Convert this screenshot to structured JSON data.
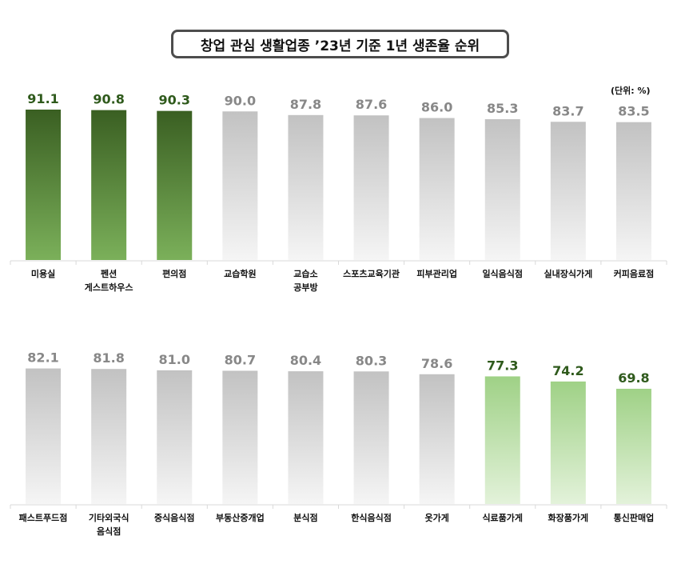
{
  "title": "창업 관심 생활업종 ’23년 기준 1년 생존율 순위",
  "unit": "(단위: %)",
  "colors": {
    "dark_green_top": "#3a5f22",
    "dark_green_bottom": "#7bb05a",
    "light_green_top": "#9fd186",
    "light_green_bottom": "#e3f2da",
    "gray_top": "#c2c2c2",
    "gray_bottom": "#f5f5f5",
    "dark_green_label": "#2f5a1c",
    "gray_label": "#888888"
  },
  "chart_data": [
    {
      "type": "bar",
      "categories": [
        "미용실",
        "펜션\n게스트하우스",
        "편의점",
        "교습학원",
        "교습소\n공부방",
        "스포츠교육기관",
        "피부관리업",
        "일식음식점",
        "실내장식가게",
        "커피음료점"
      ],
      "values": [
        91.1,
        90.8,
        90.3,
        90.0,
        87.8,
        87.6,
        86.0,
        85.3,
        83.7,
        83.5
      ],
      "labels": [
        "91.1",
        "90.8",
        "90.3",
        "90.0",
        "87.8",
        "87.6",
        "86.0",
        "85.3",
        "83.7",
        "83.5"
      ],
      "highlight": [
        "dark",
        "dark",
        "dark",
        "gray",
        "gray",
        "gray",
        "gray",
        "gray",
        "gray",
        "gray"
      ]
    },
    {
      "type": "bar",
      "categories": [
        "패스트푸드점",
        "기타외국식\n음식점",
        "중식음식점",
        "부동산중개업",
        "분식점",
        "한식음식점",
        "옷가게",
        "식료품가게",
        "화장품가게",
        "통신판매업"
      ],
      "values": [
        82.1,
        81.8,
        81.0,
        80.7,
        80.4,
        80.3,
        78.6,
        77.3,
        74.2,
        69.8
      ],
      "labels": [
        "82.1",
        "81.8",
        "81.0",
        "80.7",
        "80.4",
        "80.3",
        "78.6",
        "77.3",
        "74.2",
        "69.8"
      ],
      "highlight": [
        "gray",
        "gray",
        "gray",
        "gray",
        "gray",
        "gray",
        "gray",
        "light",
        "light",
        "light"
      ]
    }
  ]
}
